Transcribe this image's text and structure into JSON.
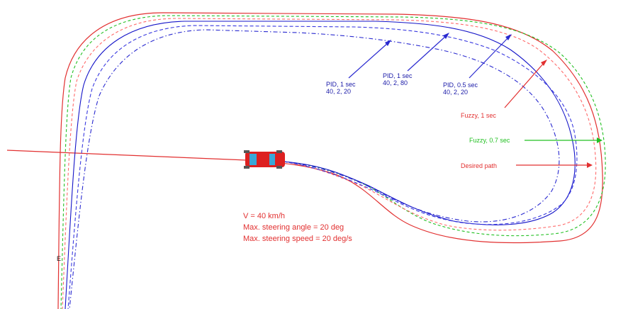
{
  "labels": {
    "pid_1sec_a": {
      "line1": "PID, 1 sec",
      "line2": "40, 2, 20",
      "color": "#1a1aa8"
    },
    "pid_1sec_b": {
      "line1": "PID, 1 sec",
      "line2": "40, 2, 80",
      "color": "#1a1aa8"
    },
    "pid_05sec": {
      "line1": "PID, 0.5 sec",
      "line2": "40, 2, 20",
      "color": "#1a1aa8"
    },
    "fuzzy_1sec": {
      "text": "Fuzzy, 1 sec",
      "color": "#e23030"
    },
    "fuzzy_07sec": {
      "text": "Fuzzy, 0.7 sec",
      "color": "#22c022"
    },
    "desired_path": {
      "text": "Desired path",
      "color": "#e23030"
    },
    "start_marker": {
      "text": "E"
    }
  },
  "info": {
    "speed": "V = 40 km/h",
    "max_steering_angle": "Max. steering angle = 20 deg",
    "max_steering_speed": "Max. steering speed = 20 deg/s",
    "color": "#e23030"
  },
  "colors": {
    "desired": "#e23030",
    "fuzzy_1sec": "#ff6a6a",
    "fuzzy_07sec": "#22c022",
    "pid_1sec_a": "#2a2ad0",
    "pid_1sec_b": "#3a3ae0",
    "pid_05sec": "#1414c8",
    "car_body": "#dd2020",
    "car_window": "#3aa8d8"
  }
}
